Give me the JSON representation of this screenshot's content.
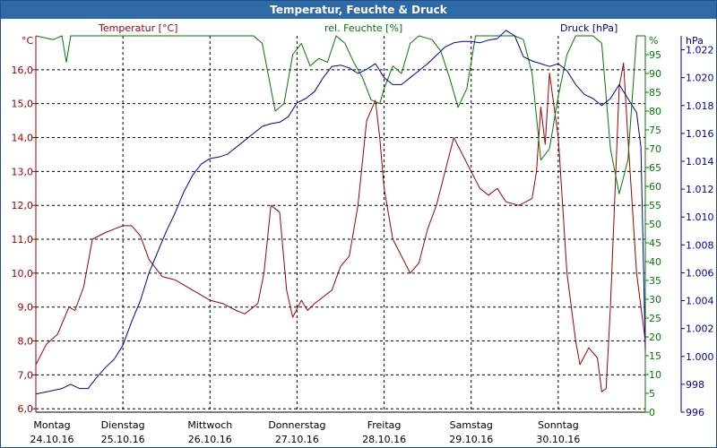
{
  "window": {
    "title": "Temperatur, Feuchte & Druck"
  },
  "chart_data": {
    "type": "line",
    "title": "Temperatur, Feuchte & Druck",
    "colors": {
      "temperature": "#a00000",
      "humidity": "#007a00",
      "pressure": "#0000a0",
      "grid": "#000000",
      "titlebar": "#2f6aa6"
    },
    "x": {
      "range_days": [
        0,
        7
      ],
      "dates": [
        {
          "day": "Montag",
          "date": "24.10.16"
        },
        {
          "day": "Dienstag",
          "date": "25.10.16"
        },
        {
          "day": "Mittwoch",
          "date": "26.10.16"
        },
        {
          "day": "Donnerstag",
          "date": "27.10.16"
        },
        {
          "day": "Freitag",
          "date": "28.10.16"
        },
        {
          "day": "Samstag",
          "date": "29.10.16"
        },
        {
          "day": "Sonntag",
          "date": "30.10.16"
        }
      ]
    },
    "axes": {
      "temperature": {
        "label": "Temperatur [°C]",
        "unit": "°C",
        "range": [
          5.9,
          17.0
        ],
        "ticks": [
          "16,0",
          "15,0",
          "14,0",
          "13,0",
          "12,0",
          "11,0",
          "10,0",
          "9,0",
          "8,0",
          "7,0",
          "6,0"
        ]
      },
      "humidity": {
        "label": "rel. Feuchte [%]",
        "unit": "%",
        "range": [
          0,
          100
        ],
        "ticks": [
          "95",
          "90",
          "85",
          "80",
          "75",
          "70",
          "65",
          "60",
          "55",
          "50",
          "45",
          "40",
          "35",
          "30",
          "25",
          "20",
          "15",
          "10",
          "5",
          "0"
        ]
      },
      "pressure": {
        "label": "Druck [hPa]",
        "unit": "hPa",
        "range": [
          0.996,
          1.023
        ],
        "ticks": [
          "1.022",
          "1.020",
          "1.018",
          "1.016",
          "1.014",
          "1.012",
          "1.010",
          "1.008",
          "1.006",
          "1.004",
          "1.002",
          "1.000",
          "998",
          "996"
        ]
      }
    },
    "series": [
      {
        "name": "Temperatur [°C]",
        "axis": "temperature",
        "points": [
          [
            0,
            7.3
          ],
          [
            0.12,
            7.9
          ],
          [
            0.25,
            8.2
          ],
          [
            0.38,
            9.0
          ],
          [
            0.45,
            8.9
          ],
          [
            0.55,
            9.6
          ],
          [
            0.65,
            11.0
          ],
          [
            0.8,
            11.2
          ],
          [
            0.9,
            11.3
          ],
          [
            1.0,
            11.4
          ],
          [
            1.1,
            11.4
          ],
          [
            1.2,
            11.1
          ],
          [
            1.3,
            10.4
          ],
          [
            1.45,
            9.9
          ],
          [
            1.6,
            9.8
          ],
          [
            1.8,
            9.5
          ],
          [
            2.0,
            9.2
          ],
          [
            2.15,
            9.1
          ],
          [
            2.3,
            8.9
          ],
          [
            2.4,
            8.8
          ],
          [
            2.55,
            9.1
          ],
          [
            2.62,
            10.0
          ],
          [
            2.7,
            12.0
          ],
          [
            2.8,
            11.8
          ],
          [
            2.88,
            9.5
          ],
          [
            2.95,
            8.7
          ],
          [
            3.05,
            9.2
          ],
          [
            3.12,
            8.9
          ],
          [
            3.2,
            9.1
          ],
          [
            3.3,
            9.3
          ],
          [
            3.4,
            9.5
          ],
          [
            3.5,
            10.2
          ],
          [
            3.6,
            10.5
          ],
          [
            3.7,
            12.0
          ],
          [
            3.8,
            14.5
          ],
          [
            3.9,
            15.1
          ],
          [
            3.95,
            14.0
          ],
          [
            4.0,
            12.5
          ],
          [
            4.1,
            11.0
          ],
          [
            4.2,
            10.5
          ],
          [
            4.3,
            10.0
          ],
          [
            4.4,
            10.3
          ],
          [
            4.5,
            11.3
          ],
          [
            4.6,
            12.0
          ],
          [
            4.7,
            13.0
          ],
          [
            4.8,
            14.0
          ],
          [
            4.9,
            13.5
          ],
          [
            5.0,
            13.0
          ],
          [
            5.1,
            12.5
          ],
          [
            5.2,
            12.3
          ],
          [
            5.3,
            12.5
          ],
          [
            5.4,
            12.1
          ],
          [
            5.55,
            12.0
          ],
          [
            5.7,
            12.2
          ],
          [
            5.75,
            13.0
          ],
          [
            5.8,
            14.9
          ],
          [
            5.85,
            13.8
          ],
          [
            5.9,
            15.9
          ],
          [
            6.0,
            14.0
          ],
          [
            6.1,
            10.0
          ],
          [
            6.2,
            8.0
          ],
          [
            6.25,
            7.3
          ],
          [
            6.35,
            7.8
          ],
          [
            6.45,
            7.5
          ],
          [
            6.5,
            6.5
          ],
          [
            6.55,
            6.6
          ],
          [
            6.6,
            9.0
          ],
          [
            6.7,
            15.5
          ],
          [
            6.75,
            16.2
          ],
          [
            6.8,
            14.0
          ],
          [
            6.9,
            10.0
          ],
          [
            7.0,
            8.0
          ]
        ]
      },
      {
        "name": "rel. Feuchte [%]",
        "axis": "humidity",
        "points": [
          [
            0,
            100
          ],
          [
            0.2,
            99
          ],
          [
            0.3,
            100
          ],
          [
            0.35,
            93
          ],
          [
            0.4,
            100
          ],
          [
            2.5,
            100
          ],
          [
            2.6,
            98
          ],
          [
            2.75,
            80
          ],
          [
            2.85,
            82
          ],
          [
            2.95,
            95
          ],
          [
            3.05,
            98
          ],
          [
            3.15,
            92
          ],
          [
            3.25,
            94
          ],
          [
            3.35,
            93
          ],
          [
            3.45,
            100
          ],
          [
            3.55,
            98
          ],
          [
            3.65,
            93
          ],
          [
            3.75,
            89
          ],
          [
            3.85,
            83
          ],
          [
            3.95,
            82
          ],
          [
            4.0,
            86
          ],
          [
            4.1,
            92
          ],
          [
            4.2,
            90
          ],
          [
            4.3,
            98
          ],
          [
            4.4,
            100
          ],
          [
            4.55,
            99
          ],
          [
            4.65,
            96
          ],
          [
            4.75,
            89
          ],
          [
            4.85,
            81
          ],
          [
            4.95,
            86
          ],
          [
            5.05,
            100
          ],
          [
            5.15,
            100
          ],
          [
            5.4,
            100
          ],
          [
            5.5,
            100
          ],
          [
            5.6,
            99
          ],
          [
            5.7,
            90
          ],
          [
            5.8,
            67
          ],
          [
            5.9,
            70
          ],
          [
            6.0,
            84
          ],
          [
            6.1,
            95
          ],
          [
            6.2,
            100
          ],
          [
            6.3,
            100
          ],
          [
            6.4,
            100
          ],
          [
            6.5,
            98
          ],
          [
            6.6,
            70
          ],
          [
            6.7,
            58
          ],
          [
            6.8,
            67
          ],
          [
            6.9,
            100
          ],
          [
            7.0,
            100
          ]
        ]
      },
      {
        "name": "Druck [hPa]",
        "axis": "pressure",
        "points": [
          [
            0,
            0.9973
          ],
          [
            0.15,
            0.9975
          ],
          [
            0.3,
            0.9977
          ],
          [
            0.4,
            0.998
          ],
          [
            0.5,
            0.9977
          ],
          [
            0.6,
            0.9977
          ],
          [
            0.7,
            0.9985
          ],
          [
            0.8,
            0.9992
          ],
          [
            0.9,
            0.9998
          ],
          [
            1.0,
            1.0008
          ],
          [
            1.1,
            1.0025
          ],
          [
            1.2,
            1.004
          ],
          [
            1.3,
            1.006
          ],
          [
            1.4,
            1.0075
          ],
          [
            1.5,
            1.009
          ],
          [
            1.6,
            1.0103
          ],
          [
            1.7,
            1.0118
          ],
          [
            1.8,
            1.013
          ],
          [
            1.9,
            1.0138
          ],
          [
            2.0,
            1.0142
          ],
          [
            2.1,
            1.0143
          ],
          [
            2.2,
            1.0145
          ],
          [
            2.3,
            1.015
          ],
          [
            2.4,
            1.0155
          ],
          [
            2.5,
            1.016
          ],
          [
            2.6,
            1.0165
          ],
          [
            2.7,
            1.0167
          ],
          [
            2.8,
            1.0168
          ],
          [
            2.9,
            1.0172
          ],
          [
            3.0,
            1.0182
          ],
          [
            3.1,
            1.0185
          ],
          [
            3.2,
            1.019
          ],
          [
            3.3,
            1.02
          ],
          [
            3.4,
            1.0208
          ],
          [
            3.5,
            1.0209
          ],
          [
            3.6,
            1.0207
          ],
          [
            3.7,
            1.0203
          ],
          [
            3.8,
            1.0206
          ],
          [
            3.9,
            1.021
          ],
          [
            4.0,
            1.02
          ],
          [
            4.1,
            1.0195
          ],
          [
            4.2,
            1.0195
          ],
          [
            4.3,
            1.02
          ],
          [
            4.4,
            1.0205
          ],
          [
            4.5,
            1.021
          ],
          [
            4.6,
            1.0216
          ],
          [
            4.7,
            1.0222
          ],
          [
            4.8,
            1.0225
          ],
          [
            4.9,
            1.0226
          ],
          [
            5.0,
            1.0226
          ],
          [
            5.1,
            1.0225
          ],
          [
            5.2,
            1.0227
          ],
          [
            5.3,
            1.0228
          ],
          [
            5.4,
            1.0234
          ],
          [
            5.5,
            1.023
          ],
          [
            5.6,
            1.0215
          ],
          [
            5.7,
            1.0212
          ],
          [
            5.8,
            1.021
          ],
          [
            5.9,
            1.0208
          ],
          [
            6.0,
            1.021
          ],
          [
            6.1,
            1.0205
          ],
          [
            6.2,
            1.0195
          ],
          [
            6.3,
            1.0188
          ],
          [
            6.4,
            1.0185
          ],
          [
            6.5,
            1.018
          ],
          [
            6.6,
            1.0185
          ],
          [
            6.7,
            1.0195
          ],
          [
            6.8,
            1.0185
          ],
          [
            6.9,
            1.0175
          ],
          [
            6.95,
            1.015
          ],
          [
            7.0,
            1.0005
          ]
        ]
      }
    ]
  }
}
